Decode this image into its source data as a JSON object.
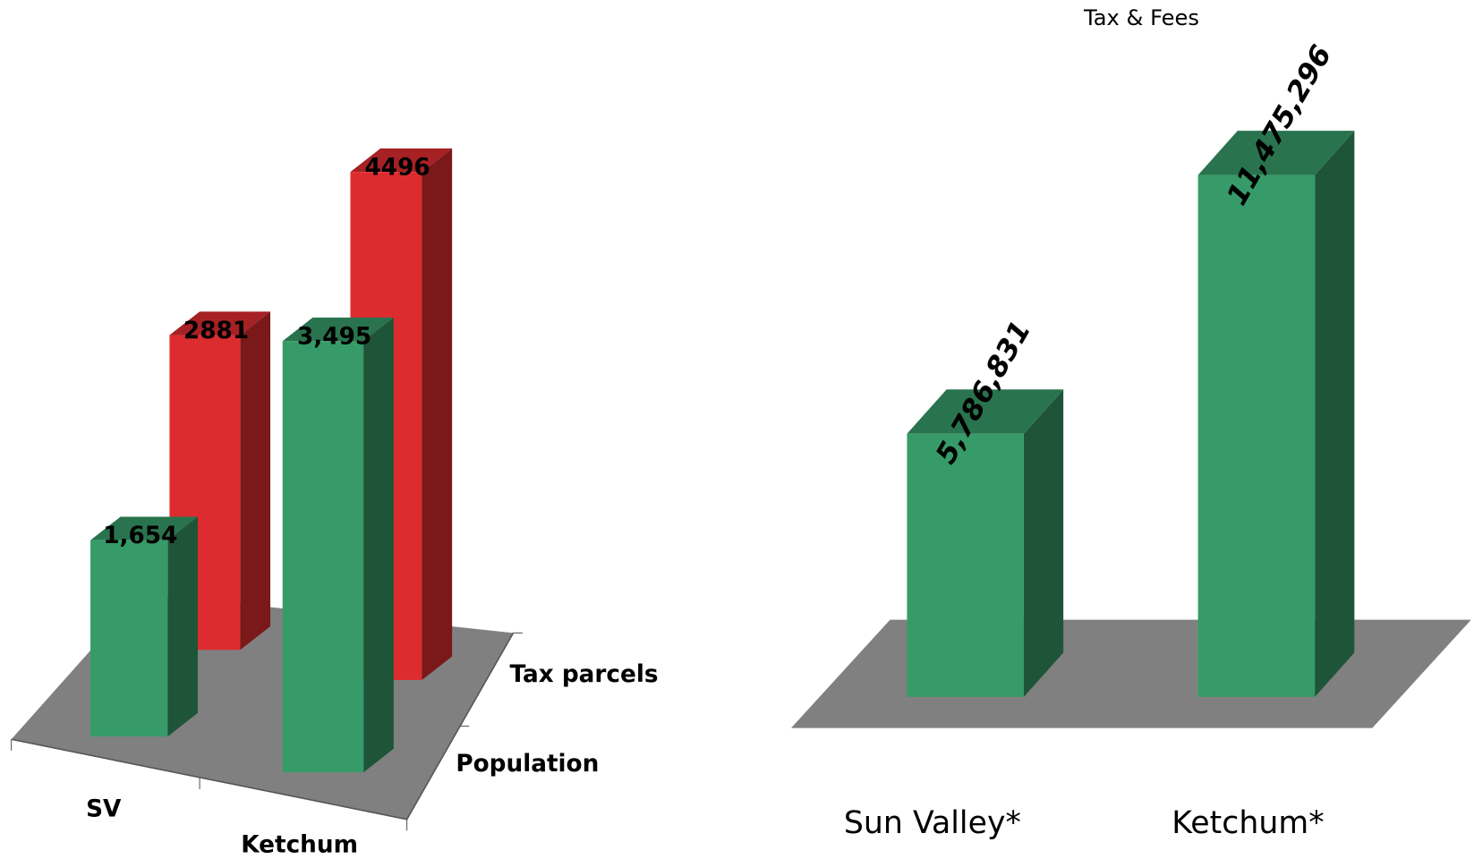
{
  "chart_data": [
    {
      "type": "bar3d",
      "categories": [
        "SV",
        "Ketchum"
      ],
      "series": [
        {
          "name": "Population",
          "color": "#369b68",
          "values": [
            1654,
            3495
          ],
          "value_labels": [
            "1,654",
            "3,495"
          ]
        },
        {
          "name": "Tax parcels",
          "color": "#dd2c30",
          "values": [
            2881,
            4496
          ]
        }
      ]
    },
    {
      "type": "bar3d",
      "title": "Tax & Fees",
      "categories": [
        "Sun Valley*",
        "Ketchum*"
      ],
      "series": [
        {
          "color": "#369b68",
          "values": [
            5786831,
            11475296
          ],
          "value_labels": [
            "5,786,831",
            "11,475,296"
          ]
        }
      ]
    }
  ]
}
